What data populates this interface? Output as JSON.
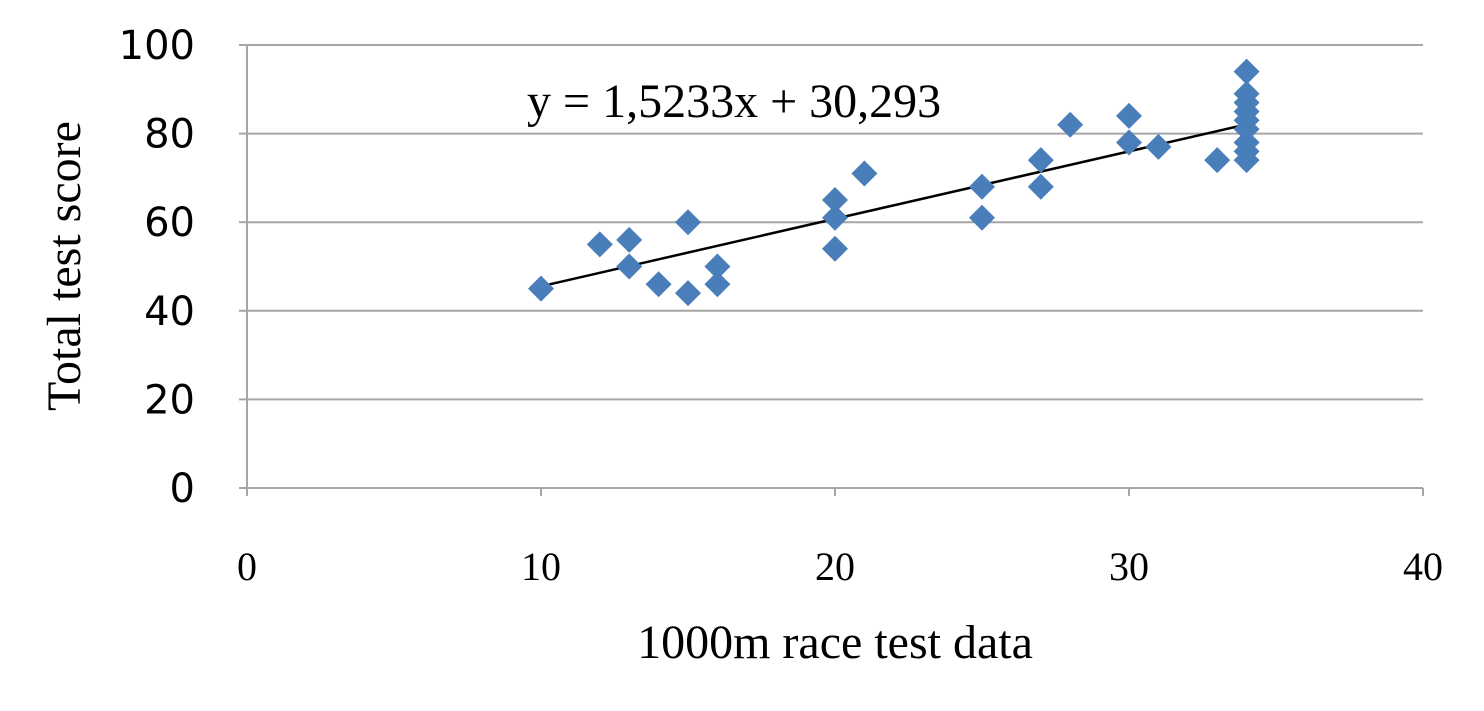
{
  "chart_data": {
    "type": "scatter",
    "xlabel": "1000m race test data",
    "ylabel": "Total test score",
    "xlim": [
      0,
      40
    ],
    "ylim": [
      0,
      100
    ],
    "x_ticks": [
      0,
      10,
      20,
      30,
      40
    ],
    "y_ticks": [
      0,
      20,
      40,
      60,
      80,
      100
    ],
    "grid": "horizontal",
    "marker": "diamond",
    "marker_color": "#4a7ebb",
    "points": [
      {
        "x": 10,
        "y": 45
      },
      {
        "x": 12,
        "y": 55
      },
      {
        "x": 13,
        "y": 56
      },
      {
        "x": 13,
        "y": 50
      },
      {
        "x": 14,
        "y": 46
      },
      {
        "x": 15,
        "y": 60
      },
      {
        "x": 15,
        "y": 44
      },
      {
        "x": 16,
        "y": 50
      },
      {
        "x": 16,
        "y": 46
      },
      {
        "x": 20,
        "y": 65
      },
      {
        "x": 20,
        "y": 61
      },
      {
        "x": 20,
        "y": 54
      },
      {
        "x": 21,
        "y": 71
      },
      {
        "x": 25,
        "y": 68
      },
      {
        "x": 25,
        "y": 61
      },
      {
        "x": 27,
        "y": 74
      },
      {
        "x": 27,
        "y": 68
      },
      {
        "x": 28,
        "y": 82
      },
      {
        "x": 30,
        "y": 84
      },
      {
        "x": 30,
        "y": 78
      },
      {
        "x": 31,
        "y": 77
      },
      {
        "x": 33,
        "y": 74
      },
      {
        "x": 34,
        "y": 94
      },
      {
        "x": 34,
        "y": 89
      },
      {
        "x": 34,
        "y": 87
      },
      {
        "x": 34,
        "y": 85
      },
      {
        "x": 34,
        "y": 83
      },
      {
        "x": 34,
        "y": 81
      },
      {
        "x": 34,
        "y": 78
      },
      {
        "x": 34,
        "y": 76
      },
      {
        "x": 34,
        "y": 74
      }
    ],
    "trendline": {
      "slope": 1.5233,
      "intercept": 30.293,
      "x_range": [
        10,
        34
      ],
      "color": "#000000",
      "equation_label": "y = 1,5233x + 30,293"
    }
  }
}
